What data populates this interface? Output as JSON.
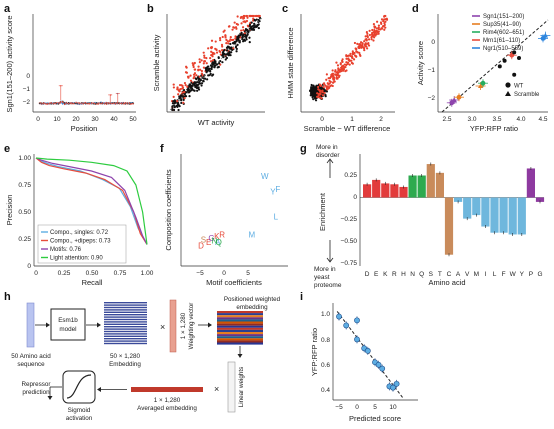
{
  "panels": {
    "a": {
      "letter": "a",
      "xlabel": "Position",
      "ylabel": "Sgn1(151–200) activity score",
      "xticks": [
        "0",
        "10",
        "20",
        "30",
        "40",
        "50"
      ],
      "yticks": [
        "0",
        "−1",
        "−2"
      ]
    },
    "b": {
      "letter": "b",
      "xlabel": "WT activity",
      "ylabel": "Scramble activity"
    },
    "c": {
      "letter": "c",
      "xlabel": "Scramble − WT difference",
      "ylabel": "HMM state difference",
      "xticks": [
        "0",
        "1",
        "2"
      ]
    },
    "d": {
      "letter": "d",
      "xlabel": "YFP:RFP ratio",
      "ylabel": "Activity score",
      "xticks": [
        "2.5",
        "3.0",
        "3.5",
        "4.0",
        "4.5"
      ],
      "yticks": [
        "0",
        "−1",
        "−2"
      ],
      "legend": [
        {
          "label": "Sgn1(151–200)",
          "color": "#8e44ad"
        },
        {
          "label": "Sup35(41–90)",
          "color": "#e67e22"
        },
        {
          "label": "Rim4(602–651)",
          "color": "#27ae60"
        },
        {
          "label": "Mrn1(61–110)",
          "color": "#e74c3c"
        },
        {
          "label": "Ngr1(510–559)",
          "color": "#2e86de"
        }
      ],
      "marker_legend": [
        {
          "label": "WT"
        },
        {
          "label": "Scramble"
        }
      ]
    },
    "e": {
      "letter": "e",
      "xlabel": "Recall",
      "ylabel": "Precision",
      "xticks": [
        "0",
        "0.25",
        "0.50",
        "0.75",
        "1.00"
      ],
      "yticks": [
        "0",
        "0.25",
        "0.50",
        "0.75",
        "1.00"
      ],
      "legend": [
        {
          "label": "Compo., singles: 0.72",
          "color": "#5dade2"
        },
        {
          "label": "Compo., +dipeps: 0.73",
          "color": "#e74c3c"
        },
        {
          "label": "Motifs: 0.76",
          "color": "#8e44ad"
        },
        {
          "label": "Light attention: 0.90",
          "color": "#2ecc40"
        }
      ]
    },
    "f": {
      "letter": "f",
      "xlabel": "Motif coefficients",
      "ylabel": "Composition coefficients",
      "xticks": [
        "−5",
        "0",
        "5"
      ]
    },
    "g": {
      "letter": "g",
      "xlabel": "Amino acid",
      "ylabel": "Enrichment",
      "top_note": "More in\ndisorder",
      "bottom_note": "More in\nyeast\nproteome",
      "yticks": [
        "0.25",
        "0",
        "−0.25",
        "−0.50",
        "−0.75"
      ],
      "categories": [
        "D",
        "E",
        "K",
        "R",
        "H",
        "N",
        "Q",
        "S",
        "T",
        "C",
        "A",
        "V",
        "M",
        "I",
        "L",
        "F",
        "W",
        "Y",
        "P",
        "G"
      ]
    },
    "h": {
      "letter": "h",
      "seq_label": "50 Amino acid\nsequence",
      "model_label": "Esm1b\nmodel",
      "embedding_label": "50 × 1,280\nEmbedding",
      "weighting_label": "1 × 1,280\nWeighting vector",
      "positioned_label": "Positioned weighted\nembedding",
      "linear_label": "Linear weights",
      "averaged_label": "1 × 1,280\nAveraged embedding",
      "sigmoid_label": "Sigmoid\nactivation",
      "repressor_label": "Repressor\nprediction",
      "times": "×"
    },
    "i": {
      "letter": "i",
      "xlabel": "Predicted score",
      "ylabel": "YFP:RFP ratio",
      "xticks": [
        "−5",
        "0",
        "5",
        "10"
      ],
      "yticks": [
        "1.0",
        "0.8",
        "0.6",
        "0.4"
      ]
    }
  },
  "chart_data": [
    {
      "type": "scatter",
      "panel": "i",
      "x": [
        -5,
        -3,
        0,
        0,
        2,
        3,
        5,
        6,
        7,
        9,
        10,
        11
      ],
      "y": [
        0.98,
        0.91,
        0.95,
        0.8,
        0.73,
        0.71,
        0.62,
        0.6,
        0.57,
        0.43,
        0.42,
        0.45
      ],
      "xlabel": "Predicted score",
      "ylabel": "YFP:RFP ratio",
      "xlim": [
        -6,
        13
      ],
      "ylim": [
        0.3,
        1.05
      ]
    },
    {
      "type": "scatter",
      "panel": "d",
      "series": [
        {
          "name": "Sgn1(151–200)",
          "x": [
            2.6,
            2.65
          ],
          "y": [
            -2.1,
            -2.0
          ]
        },
        {
          "name": "Sup35(41–90)",
          "x": [
            2.75,
            3.2
          ],
          "y": [
            -1.9,
            -1.5
          ]
        },
        {
          "name": "Rim4(602–651)",
          "x": [
            3.25
          ],
          "y": [
            -1.4
          ]
        },
        {
          "name": "Mrn1(61–110)",
          "x": [
            3.85
          ],
          "y": [
            -0.4
          ]
        },
        {
          "name": "Ngr1(510–559)",
          "x": [
            4.5,
            4.55
          ],
          "y": [
            0.2,
            0.3
          ]
        }
      ],
      "xlabel": "YFP:RFP ratio",
      "ylabel": "Activity score"
    },
    {
      "type": "bar",
      "panel": "g",
      "categories": [
        "D",
        "E",
        "K",
        "R",
        "H",
        "N",
        "Q",
        "S",
        "T",
        "C",
        "A",
        "V",
        "M",
        "I",
        "L",
        "F",
        "W",
        "Y",
        "P",
        "G"
      ],
      "values": [
        0.15,
        0.2,
        0.16,
        0.15,
        0.12,
        0.25,
        0.25,
        0.38,
        0.28,
        -0.65,
        -0.05,
        -0.24,
        -0.2,
        -0.33,
        -0.4,
        -0.4,
        -0.42,
        -0.42,
        0.33,
        -0.05
      ],
      "colors": [
        "#e23b3b",
        "#e23b3b",
        "#e23b3b",
        "#e23b3b",
        "#e23b3b",
        "#2eaa4f",
        "#2eaa4f",
        "#c98b5b",
        "#c98b5b",
        "#c98b5b",
        "#6fb7dd",
        "#6fb7dd",
        "#6fb7dd",
        "#6fb7dd",
        "#6fb7dd",
        "#6fb7dd",
        "#6fb7dd",
        "#6fb7dd",
        "#8e3aa0",
        "#8e3aa0"
      ],
      "ylim": [
        -0.78,
        0.4
      ],
      "xlabel": "Amino acid",
      "ylabel": "Enrichment"
    },
    {
      "type": "scatter",
      "panel": "f",
      "points": [
        {
          "label": "W",
          "x": 8.5,
          "y": 3.6,
          "color": "#5dade2"
        },
        {
          "label": "Y",
          "x": 10.2,
          "y": 2.3,
          "color": "#5dade2"
        },
        {
          "label": "F",
          "x": 11.2,
          "y": 2.5,
          "color": "#5dade2"
        },
        {
          "label": "L",
          "x": 10.8,
          "y": 0.2,
          "color": "#5dade2"
        },
        {
          "label": "M",
          "x": 5.8,
          "y": -1.3,
          "color": "#5dade2"
        },
        {
          "label": "D",
          "x": -4.8,
          "y": -2.2,
          "color": "#e74c3c"
        },
        {
          "label": "E",
          "x": -3.2,
          "y": -1.9,
          "color": "#e74c3c"
        },
        {
          "label": "K",
          "x": -1.5,
          "y": -1.4,
          "color": "#e74c3c"
        },
        {
          "label": "R",
          "x": -0.4,
          "y": -1.3,
          "color": "#e74c3c"
        },
        {
          "label": "S",
          "x": -4.3,
          "y": -1.7,
          "color": "#c98b5b"
        },
        {
          "label": "G",
          "x": -2.6,
          "y": -1.6,
          "color": "#8e44ad"
        },
        {
          "label": "A",
          "x": -1.3,
          "y": -1.9,
          "color": "#5dade2"
        },
        {
          "label": "N",
          "x": -2.0,
          "y": -1.8,
          "color": "#2eaa4f"
        },
        {
          "label": "Q",
          "x": -1.1,
          "y": -1.9,
          "color": "#2eaa4f"
        }
      ],
      "xlabel": "Motif coefficients",
      "ylabel": "Composition coefficients"
    }
  ]
}
